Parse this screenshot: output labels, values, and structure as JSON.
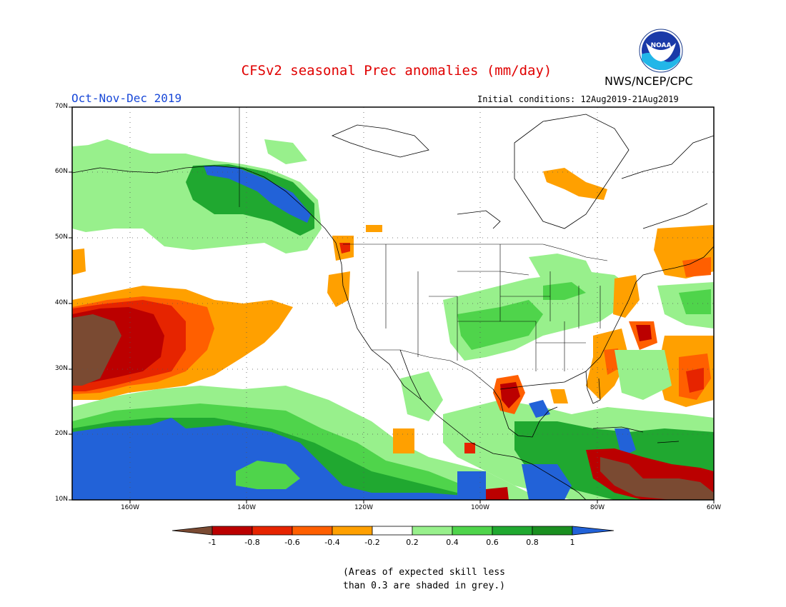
{
  "title": "CFSv2 seasonal Prec anomalies (mm/day)",
  "agency": "NWS/NCEP/CPC",
  "logo_text": "NOAA",
  "season": "Oct-Nov-Dec 2019",
  "initial_conditions": "Initial conditions: 12Aug2019-21Aug2019",
  "note_lines": [
    "(Areas of expected skill less",
    "than 0.3 are shaded in grey.)"
  ],
  "lat_labels": [
    "70N",
    "60N",
    "50N",
    "40N",
    "30N",
    "20N",
    "10N"
  ],
  "lon_labels": [
    "160W",
    "140W",
    "120W",
    "100W",
    "80W",
    "60W"
  ],
  "colorbar": {
    "labels": [
      "-1",
      "-0.8",
      "-0.6",
      "-0.4",
      "-0.2",
      "0.2",
      "0.4",
      "0.6",
      "0.8",
      "1"
    ],
    "colors": [
      "#7a4a32",
      "#bb0000",
      "#e62400",
      "#ff5f00",
      "#ffa000",
      "#ffffff",
      "#98f08c",
      "#4fd44b",
      "#20a830",
      "#1a8f20",
      "#2262d8"
    ]
  }
}
